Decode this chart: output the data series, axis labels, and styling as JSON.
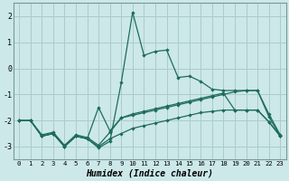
{
  "xlabel": "Humidex (Indice chaleur)",
  "bg_color": "#cce8e8",
  "grid_color": "#aacccc",
  "line_color": "#1e6b5e",
  "xlim": [
    -0.5,
    23.5
  ],
  "ylim": [
    -3.5,
    2.5
  ],
  "x_ticks": [
    0,
    1,
    2,
    3,
    4,
    5,
    6,
    7,
    8,
    9,
    10,
    11,
    12,
    13,
    14,
    15,
    16,
    17,
    18,
    19,
    20,
    21,
    22,
    23
  ],
  "y_ticks": [
    -3,
    -2,
    -1,
    0,
    1,
    2
  ],
  "series1_x": [
    0,
    1,
    2,
    3,
    4,
    5,
    6,
    7,
    8,
    9,
    10,
    11,
    12,
    13,
    14,
    15,
    16,
    17,
    18,
    19,
    20,
    21,
    22,
    23
  ],
  "series1_y": [
    -2.0,
    -2.0,
    -2.6,
    -2.5,
    -3.0,
    -2.6,
    -2.7,
    -3.05,
    -2.8,
    -0.55,
    2.15,
    0.5,
    0.65,
    0.7,
    -0.35,
    -0.3,
    -0.5,
    -0.8,
    -0.85,
    -0.85,
    -0.85,
    -0.85,
    -1.85,
    -2.6
  ],
  "series2_x": [
    0,
    1,
    2,
    3,
    4,
    5,
    6,
    7,
    8,
    9,
    10,
    11,
    12,
    13,
    14,
    15,
    16,
    17,
    18,
    19,
    20,
    21,
    22,
    23
  ],
  "series2_y": [
    -2.0,
    -2.0,
    -2.55,
    -2.45,
    -2.95,
    -2.55,
    -2.65,
    -2.95,
    -2.45,
    -1.9,
    -1.8,
    -1.7,
    -1.6,
    -1.5,
    -1.4,
    -1.3,
    -1.2,
    -1.1,
    -1.0,
    -0.9,
    -0.85,
    -0.85,
    -1.75,
    -2.55
  ],
  "series3_x": [
    0,
    1,
    2,
    3,
    4,
    5,
    6,
    7,
    8,
    9,
    10,
    11,
    12,
    13,
    14,
    15,
    16,
    17,
    18,
    19,
    20,
    21,
    22,
    23
  ],
  "series3_y": [
    -2.0,
    -2.0,
    -2.6,
    -2.5,
    -3.0,
    -2.6,
    -2.7,
    -3.0,
    -2.7,
    -2.5,
    -2.3,
    -2.2,
    -2.1,
    -2.0,
    -1.9,
    -1.8,
    -1.7,
    -1.65,
    -1.6,
    -1.6,
    -1.6,
    -1.6,
    -2.05,
    -2.6
  ],
  "series4_x": [
    1,
    2,
    3,
    4,
    5,
    6,
    7,
    8,
    9,
    10,
    11,
    12,
    13,
    14,
    15,
    16,
    17,
    18,
    19,
    20,
    21,
    22,
    23
  ],
  "series4_y": [
    -2.0,
    -2.6,
    -2.5,
    -3.0,
    -2.6,
    -2.7,
    -1.5,
    -2.4,
    -1.9,
    -1.75,
    -1.65,
    -1.55,
    -1.45,
    -1.35,
    -1.25,
    -1.15,
    -1.05,
    -0.95,
    -1.6,
    -1.6,
    -1.6,
    -2.05,
    -2.6
  ]
}
